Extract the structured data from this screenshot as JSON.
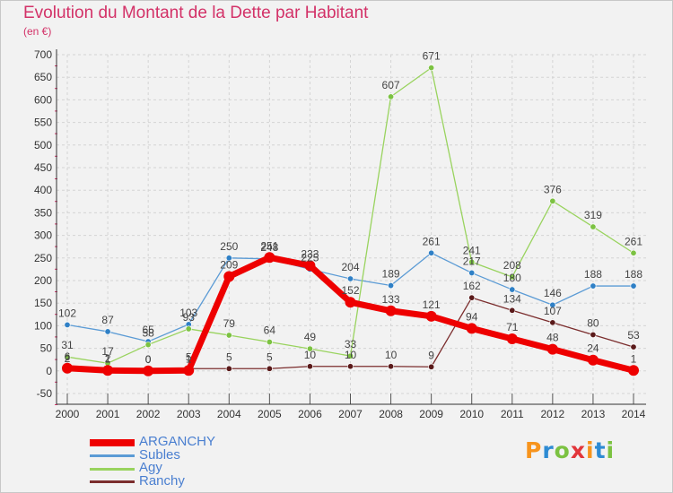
{
  "header": {
    "title": "Evolution du Montant de la Dette par Habitant",
    "subtitle": "(en €)"
  },
  "logo": {
    "text": "Proxiti",
    "letters": [
      "P",
      "r",
      "o",
      "x",
      "i",
      "t",
      "i"
    ],
    "colors": [
      "#f7941d",
      "#2e8bd3",
      "#7cc242",
      "#e2363b",
      "#f7941d",
      "#2e8bd3",
      "#7cc242"
    ]
  },
  "colors": {
    "title": "#d33268",
    "grid": "#d4d4d4",
    "axis": "#333333"
  },
  "chart_data": {
    "type": "line",
    "title": "Evolution du Montant de la Dette par Habitant",
    "subtitle": "(en €)",
    "xlabel": "",
    "ylabel": "",
    "x": [
      2000,
      2001,
      2002,
      2003,
      2004,
      2005,
      2006,
      2007,
      2008,
      2009,
      2010,
      2011,
      2012,
      2013,
      2014
    ],
    "xticks": [
      "2000",
      "2001",
      "2002",
      "2003",
      "2004",
      "2005",
      "2006",
      "2007",
      "2008",
      "2009",
      "2010",
      "2011",
      "2012",
      "2013",
      "2014"
    ],
    "ylim": [
      -50,
      700
    ],
    "yticks": [
      -50,
      0,
      50,
      100,
      150,
      200,
      250,
      300,
      350,
      400,
      450,
      500,
      550,
      600,
      650,
      700
    ],
    "ytick_labels": [
      "-50",
      "0",
      "50",
      "100",
      "150",
      "200",
      "250",
      "300",
      "350",
      "400",
      "450",
      "500",
      "550",
      "600",
      "650",
      "700"
    ],
    "grid": true,
    "legend_position": "bottom-left",
    "series": [
      {
        "name": "Subles",
        "color": "#5b9bd5",
        "marker_color": "#2f80c6",
        "width": 1.3,
        "values": [
          102,
          87,
          65,
          103,
          250,
          248,
          225,
          204,
          189,
          261,
          217,
          180,
          146,
          188,
          188
        ],
        "labels": [
          "102",
          "87",
          "65",
          "103",
          "250",
          "248",
          "225",
          "204",
          "189",
          "261",
          "217",
          "180",
          "146",
          "188",
          "188"
        ]
      },
      {
        "name": "Agy",
        "color": "#99d35e",
        "marker_color": "#7cc242",
        "width": 1.3,
        "values": [
          31,
          17,
          58,
          93,
          79,
          64,
          49,
          33,
          607,
          671,
          241,
          208,
          376,
          319,
          261
        ],
        "labels": [
          "31",
          "17",
          "58",
          "93",
          "79",
          "64",
          "49",
          "33",
          "607",
          "671",
          "241",
          "208",
          "376",
          "319",
          "261"
        ]
      },
      {
        "name": "Ranchy",
        "color": "#7b2d2d",
        "marker_color": "#5a1a1a",
        "width": 1.3,
        "values": [
          2,
          2,
          0,
          5,
          5,
          5,
          10,
          10,
          10,
          9,
          162,
          134,
          107,
          80,
          53
        ],
        "labels": [
          "2",
          "2",
          "0",
          "5",
          "5",
          "5",
          "10",
          "10",
          "10",
          "9",
          "162",
          "134",
          "107",
          "80",
          "53"
        ]
      },
      {
        "name": "ARGANCHY",
        "color": "#ee0000",
        "marker_color": "#ee0000",
        "width": 7,
        "values": [
          6,
          1,
          0,
          1,
          209,
          251,
          233,
          152,
          133,
          121,
          94,
          71,
          48,
          24,
          1
        ],
        "labels": [
          "6",
          "1",
          "0",
          "1",
          "209",
          "251",
          "233",
          "152",
          "133",
          "121",
          "94",
          "71",
          "48",
          "24",
          "1"
        ]
      }
    ],
    "legend": [
      {
        "name": "ARGANCHY",
        "color": "#ee0000",
        "text_color": "#4a7fd0",
        "thickness": 8
      },
      {
        "name": "Subles",
        "color": "#5b9bd5",
        "text_color": "#4a7fd0",
        "thickness": 3
      },
      {
        "name": "Agy",
        "color": "#99d35e",
        "text_color": "#4a7fd0",
        "thickness": 3
      },
      {
        "name": "Ranchy",
        "color": "#7b2d2d",
        "text_color": "#4a7fd0",
        "thickness": 3
      }
    ]
  }
}
